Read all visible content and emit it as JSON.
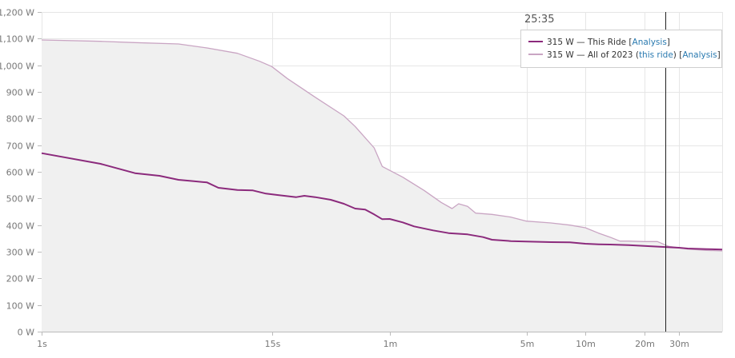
{
  "cursor": {
    "time_label": "25:35",
    "x_seconds": 1535
  },
  "tooltip": {
    "rows": [
      {
        "value": "315 W",
        "sep": " — ",
        "name": "This Ride",
        "link_open": " [",
        "link": "Analysis",
        "link_close": "]",
        "color": "#8b2a7c"
      },
      {
        "value": "315 W",
        "sep": " — ",
        "name": "All of 2023",
        "paren_open": " (",
        "paren_link": "this ride",
        "paren_close": ")",
        "link_open": " [",
        "link": "Analysis",
        "link_close": "]",
        "color": "#c9a5c3"
      }
    ]
  },
  "chart_data": {
    "type": "line",
    "x_scale": "log",
    "x_unit": "seconds",
    "xlim": [
      1,
      3000
    ],
    "ylim": [
      0,
      1200
    ],
    "grid": true,
    "y_ticks": [
      0,
      100,
      200,
      300,
      400,
      500,
      600,
      700,
      800,
      900,
      1000,
      1100,
      1200
    ],
    "y_tick_labels": [
      "0 W",
      "100 W",
      "200 W",
      "300 W",
      "400 W",
      "500 W",
      "600 W",
      "700 W",
      "800 W",
      "900 W",
      "1,000 W",
      "1,100 W",
      "1,200 W"
    ],
    "x_ticks": [
      1,
      15,
      60,
      300,
      600,
      1200,
      1800
    ],
    "x_tick_labels": [
      "1s",
      "15s",
      "1m",
      "5m",
      "10m",
      "20m",
      "30m"
    ],
    "series": [
      {
        "name": "All of 2023",
        "color": "#c9a5c3",
        "fill": "#f0f0f0",
        "points": [
          [
            1,
            1095
          ],
          [
            2,
            1090
          ],
          [
            3,
            1085
          ],
          [
            5,
            1080
          ],
          [
            7,
            1065
          ],
          [
            10,
            1045
          ],
          [
            13,
            1015
          ],
          [
            15,
            995
          ],
          [
            18,
            950
          ],
          [
            25,
            880
          ],
          [
            35,
            810
          ],
          [
            40,
            770
          ],
          [
            50,
            690
          ],
          [
            55,
            620
          ],
          [
            70,
            580
          ],
          [
            90,
            530
          ],
          [
            110,
            485
          ],
          [
            125,
            462
          ],
          [
            135,
            480
          ],
          [
            150,
            470
          ],
          [
            165,
            445
          ],
          [
            200,
            440
          ],
          [
            250,
            430
          ],
          [
            300,
            415
          ],
          [
            400,
            408
          ],
          [
            500,
            400
          ],
          [
            600,
            390
          ],
          [
            700,
            370
          ],
          [
            800,
            355
          ],
          [
            900,
            340
          ],
          [
            1000,
            340
          ],
          [
            1200,
            338
          ],
          [
            1400,
            338
          ],
          [
            1600,
            320
          ],
          [
            1800,
            315
          ],
          [
            2000,
            310
          ],
          [
            2500,
            305
          ],
          [
            3000,
            303
          ]
        ]
      },
      {
        "name": "This Ride",
        "color": "#8b2a7c",
        "points": [
          [
            1,
            670
          ],
          [
            2,
            630
          ],
          [
            3,
            595
          ],
          [
            4,
            585
          ],
          [
            5,
            570
          ],
          [
            6,
            565
          ],
          [
            7,
            560
          ],
          [
            8,
            540
          ],
          [
            10,
            532
          ],
          [
            12,
            530
          ],
          [
            14,
            518
          ],
          [
            16,
            513
          ],
          [
            20,
            505
          ],
          [
            22,
            510
          ],
          [
            25,
            505
          ],
          [
            30,
            495
          ],
          [
            35,
            480
          ],
          [
            40,
            462
          ],
          [
            45,
            458
          ],
          [
            50,
            440
          ],
          [
            55,
            422
          ],
          [
            60,
            423
          ],
          [
            70,
            410
          ],
          [
            80,
            395
          ],
          [
            100,
            380
          ],
          [
            120,
            370
          ],
          [
            150,
            365
          ],
          [
            180,
            355
          ],
          [
            200,
            345
          ],
          [
            250,
            340
          ],
          [
            300,
            338
          ],
          [
            400,
            336
          ],
          [
            500,
            335
          ],
          [
            600,
            330
          ],
          [
            700,
            328
          ],
          [
            800,
            327
          ],
          [
            1000,
            325
          ],
          [
            1200,
            322
          ],
          [
            1500,
            318
          ],
          [
            1800,
            315
          ],
          [
            2000,
            312
          ],
          [
            2500,
            310
          ],
          [
            3000,
            308
          ]
        ]
      }
    ]
  }
}
